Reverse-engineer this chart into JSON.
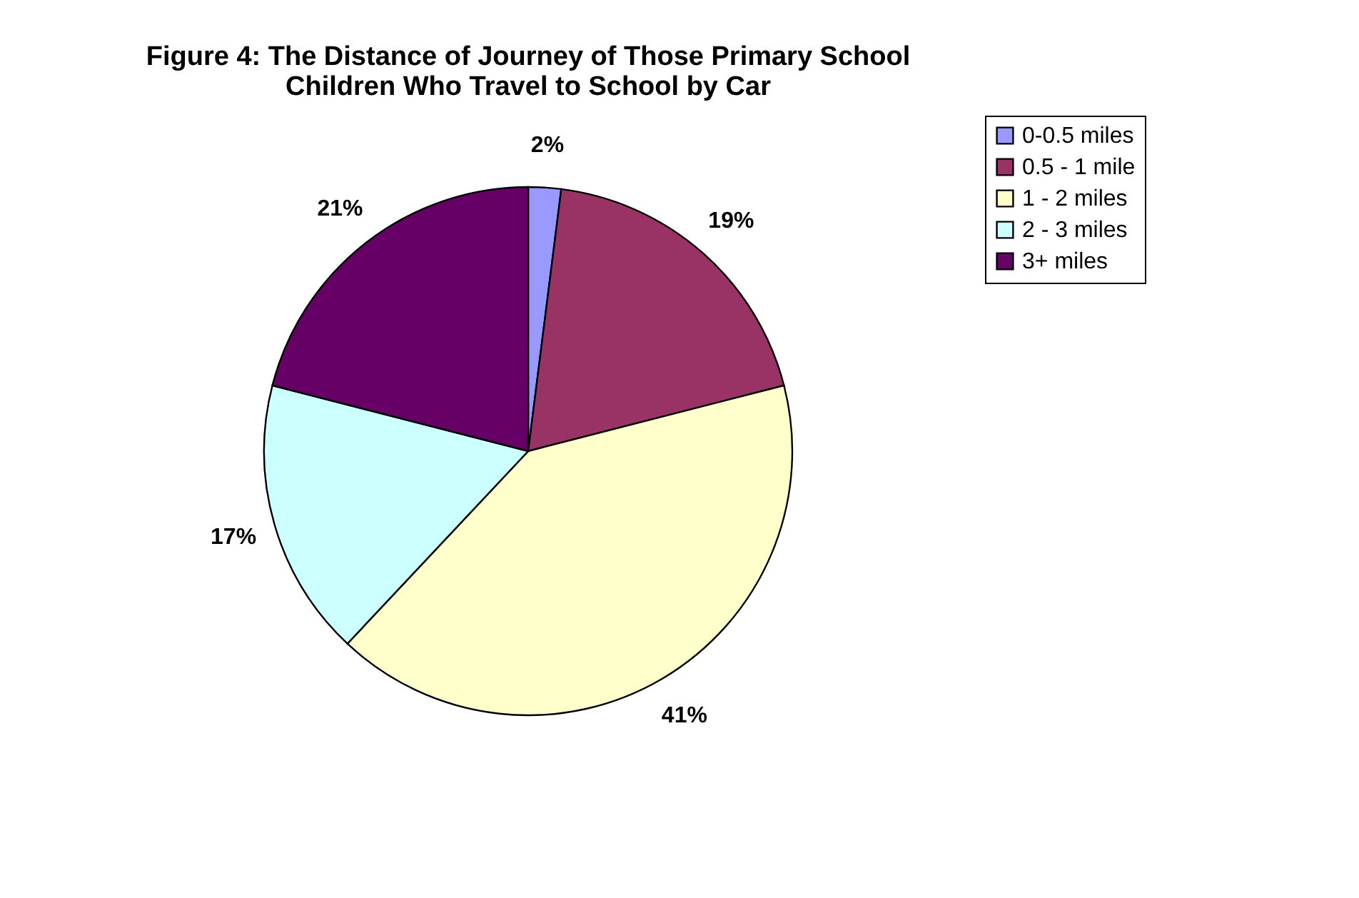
{
  "chart_data": {
    "type": "pie",
    "title": "Figure 4: The Distance of Journey of Those Primary School Children Who Travel to School by Car",
    "categories": [
      "0-0.5 miles",
      "0.5 - 1 mile",
      "1 - 2 miles",
      "2 - 3 miles",
      "3+ miles"
    ],
    "values": [
      2,
      19,
      41,
      17,
      21
    ],
    "colors": [
      "#9999ff",
      "#993366",
      "#ffffcc",
      "#ccffff",
      "#660066"
    ],
    "value_labels": [
      "2%",
      "19%",
      "41%",
      "17%",
      "21%"
    ],
    "legend": "right"
  }
}
